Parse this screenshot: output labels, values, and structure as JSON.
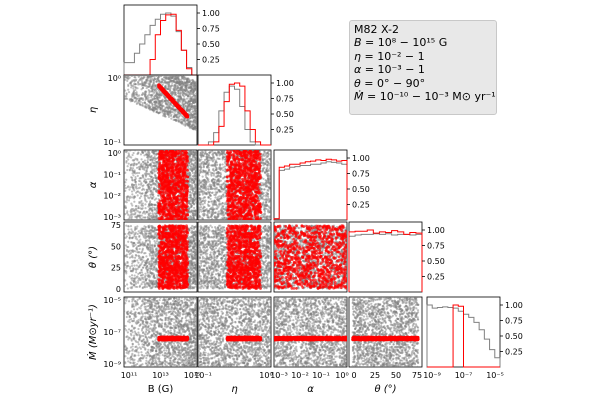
{
  "chart_data": {
    "type": "scatter",
    "title": "",
    "legend": {
      "source": "M82 X-2",
      "B_range": "10⁸ − 10¹⁵ G",
      "eta_range": "10⁻² − 1",
      "alpha_range": "10⁻³ − 1",
      "theta_range": "0° − 90°",
      "mdot_range": "10⁻¹⁰ − 10⁻³ M⊙ yr⁻¹",
      "placement": "top-right"
    },
    "parameters": [
      {
        "key": "B",
        "xlabel": "B (G)",
        "ylabel": "",
        "scale": "log",
        "range": [
          11,
          15
        ],
        "ticks": [
          "10¹¹",
          "10¹³",
          "10¹⁵"
        ]
      },
      {
        "key": "eta",
        "xlabel": "η",
        "ylabel": "η",
        "scale": "log",
        "range": [
          -2,
          0
        ],
        "ticks": [
          "10⁻¹",
          "10⁰"
        ]
      },
      {
        "key": "alpha",
        "xlabel": "α",
        "ylabel": "α",
        "scale": "log",
        "range": [
          -3,
          0
        ],
        "ticks": [
          "10⁻³",
          "10⁻²",
          "10⁻¹",
          "10⁰"
        ]
      },
      {
        "key": "theta",
        "xlabel": "θ (°)",
        "ylabel": "θ (°)",
        "scale": "linear",
        "range": [
          -5,
          95
        ],
        "ticks": [
          "0",
          "25",
          "50",
          "75"
        ]
      },
      {
        "key": "mdot",
        "xlabel": "",
        "ylabel": "Ṁ (M⊙yr⁻¹)",
        "scale": "log",
        "range": [
          -10,
          -3
        ],
        "ticks": [
          "10⁻⁹",
          "10⁻⁷",
          "10⁻⁵"
        ]
      }
    ],
    "histogram_density_ticks": [
      "0.25",
      "0.50",
      "0.75",
      "1.00"
    ],
    "series": [
      {
        "color": "#808080",
        "style": "prior"
      },
      {
        "color": "#ff0000",
        "style": "accepted"
      }
    ],
    "histograms": {
      "B": {
        "gray": [
          0.2,
          0.2,
          0.35,
          0.5,
          0.65,
          0.8,
          0.9,
          0.98,
          1.0,
          0.95,
          0.7,
          0.4,
          0.12,
          0.0
        ],
        "red": [
          0,
          0,
          0,
          0,
          0,
          0.25,
          0.65,
          0.88,
          0.97,
          0.98,
          0.72,
          0.4,
          0.1,
          0
        ]
      },
      "eta": {
        "gray": [
          0,
          0,
          0.05,
          0.2,
          0.55,
          0.85,
          0.95,
          0.9,
          0.62,
          0.25,
          0.05,
          0,
          0,
          0
        ],
        "red": [
          0,
          0,
          0,
          0.05,
          0.3,
          0.7,
          0.98,
          1.0,
          0.95,
          0.55,
          0.25,
          0.05,
          0,
          0
        ]
      },
      "alpha": {
        "gray": [
          0.02,
          0.8,
          0.82,
          0.85,
          0.86,
          0.88,
          0.88,
          0.9,
          0.9,
          0.92,
          0.94,
          0.93,
          0.92,
          0.9
        ],
        "red": [
          0.02,
          0.85,
          0.87,
          0.9,
          0.9,
          0.92,
          0.94,
          0.95,
          0.97,
          0.96,
          0.98,
          0.97,
          0.95,
          0.96
        ]
      },
      "theta": {
        "gray": [
          0.9,
          0.92,
          0.93,
          0.93,
          0.94,
          0.93,
          0.94,
          0.92,
          0.93,
          0.93,
          0.92,
          0.93
        ],
        "red": [
          0.97,
          0.98,
          0.98,
          1.0,
          0.95,
          0.97,
          0.96,
          0.99,
          0.97,
          0.93,
          0.96,
          0.95
        ]
      },
      "mdot": {
        "gray": [
          1.0,
          0.95,
          0.96,
          0.97,
          0.96,
          0.95,
          0.9,
          0.85,
          0.8,
          0.72,
          0.6,
          0.45,
          0.28,
          0.15
        ],
        "red": [
          0,
          0,
          0,
          0,
          0,
          1.0,
          0.98,
          0,
          0,
          0,
          0,
          0,
          0,
          0
        ]
      }
    }
  }
}
